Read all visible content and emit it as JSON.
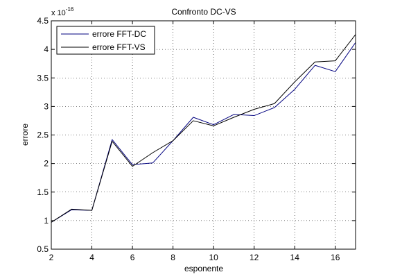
{
  "chart_data": {
    "type": "line",
    "title": "Confronto DC-VS",
    "xlabel": "esponente",
    "ylabel": "errore",
    "exponent_label": {
      "base": "x 10",
      "power": "-16"
    },
    "xlim": [
      2,
      17
    ],
    "ylim": [
      0.5,
      4.5
    ],
    "xticks": [
      2,
      4,
      6,
      8,
      10,
      12,
      14,
      16
    ],
    "yticks": [
      0.5,
      1,
      1.5,
      2,
      2.5,
      3,
      3.5,
      4,
      4.5
    ],
    "grid": true,
    "legend_position": "top-left",
    "x": [
      2,
      3,
      4,
      5,
      6,
      7,
      8,
      9,
      10,
      11,
      12,
      13,
      14,
      15,
      16,
      17
    ],
    "series": [
      {
        "name": "errore FFT-DC",
        "color": "#00007f",
        "values": [
          0.97,
          1.19,
          1.18,
          2.42,
          1.98,
          2.01,
          2.4,
          2.81,
          2.68,
          2.86,
          2.84,
          2.98,
          3.3,
          3.72,
          3.61,
          4.12
        ]
      },
      {
        "name": "errore FFT-VS",
        "color": "#000000",
        "values": [
          0.97,
          1.2,
          1.18,
          2.39,
          1.95,
          2.19,
          2.4,
          2.75,
          2.66,
          2.81,
          2.95,
          3.05,
          3.43,
          3.78,
          3.8,
          4.26
        ]
      }
    ]
  }
}
